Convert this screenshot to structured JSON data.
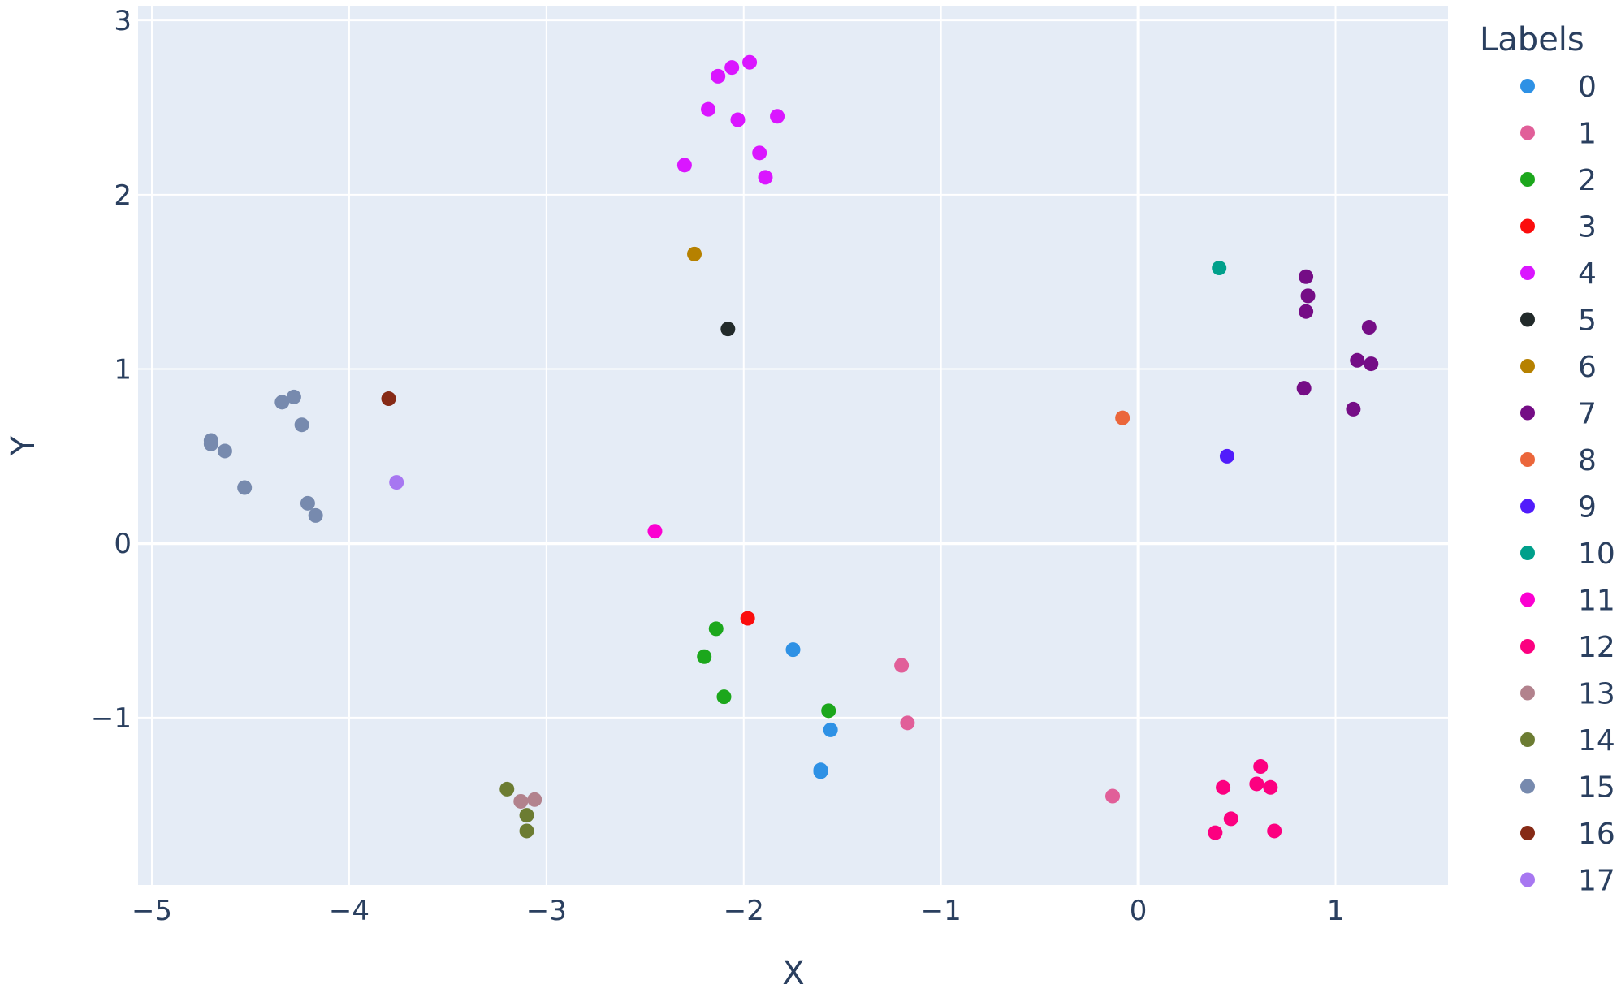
{
  "chart_data": {
    "type": "scatter",
    "xlabel": "X",
    "ylabel": "Y",
    "xlim": [
      -5.07,
      1.57
    ],
    "ylim": [
      -1.96,
      3.08
    ],
    "x_ticks": [
      -5,
      -4,
      -3,
      -2,
      -1,
      0,
      1
    ],
    "x_tick_labels": [
      "−5",
      "−4",
      "−3",
      "−2",
      "−1",
      "0",
      "1"
    ],
    "y_ticks": [
      -1,
      0,
      1,
      2,
      3
    ],
    "y_tick_labels": [
      "−1",
      "0",
      "1",
      "2",
      "3"
    ],
    "grid": true,
    "legend_title": "Labels",
    "legend_position": "right",
    "plot_bgcolor": "#e5ecf6",
    "series": [
      {
        "name": "0",
        "color": "#2e91e5",
        "points": [
          [
            -1.75,
            -0.61
          ],
          [
            -1.56,
            -1.07
          ],
          [
            -1.61,
            -1.3
          ],
          [
            -1.61,
            -1.31
          ]
        ]
      },
      {
        "name": "1",
        "color": "#e15f99",
        "points": [
          [
            -1.2,
            -0.7
          ],
          [
            -1.17,
            -1.03
          ],
          [
            -0.13,
            -1.45
          ]
        ]
      },
      {
        "name": "2",
        "color": "#1ca71c",
        "points": [
          [
            -2.14,
            -0.49
          ],
          [
            -2.2,
            -0.65
          ],
          [
            -2.1,
            -0.88
          ],
          [
            -1.57,
            -0.96
          ]
        ]
      },
      {
        "name": "3",
        "color": "#fb0d0d",
        "points": [
          [
            -1.98,
            -0.43
          ]
        ]
      },
      {
        "name": "4",
        "color": "#da16ff",
        "points": [
          [
            -1.97,
            2.76
          ],
          [
            -2.06,
            2.73
          ],
          [
            -2.13,
            2.68
          ],
          [
            -2.18,
            2.49
          ],
          [
            -2.03,
            2.43
          ],
          [
            -1.83,
            2.45
          ],
          [
            -2.3,
            2.17
          ],
          [
            -1.92,
            2.24
          ],
          [
            -1.89,
            2.1
          ]
        ]
      },
      {
        "name": "5",
        "color": "#222a2a",
        "points": [
          [
            -2.08,
            1.23
          ]
        ]
      },
      {
        "name": "6",
        "color": "#b68100",
        "points": [
          [
            -2.25,
            1.66
          ]
        ]
      },
      {
        "name": "7",
        "color": "#750d86",
        "points": [
          [
            0.85,
            1.53
          ],
          [
            0.86,
            1.42
          ],
          [
            0.85,
            1.33
          ],
          [
            1.17,
            1.24
          ],
          [
            1.11,
            1.05
          ],
          [
            1.18,
            1.03
          ],
          [
            0.84,
            0.89
          ],
          [
            1.09,
            0.77
          ]
        ]
      },
      {
        "name": "8",
        "color": "#eb663b",
        "points": [
          [
            -0.08,
            0.72
          ]
        ]
      },
      {
        "name": "9",
        "color": "#511cfb",
        "points": [
          [
            0.45,
            0.5
          ]
        ]
      },
      {
        "name": "10",
        "color": "#00a08b",
        "points": [
          [
            0.41,
            1.58
          ]
        ]
      },
      {
        "name": "11",
        "color": "#fb00d1",
        "points": [
          [
            -2.45,
            0.07
          ]
        ]
      },
      {
        "name": "12",
        "color": "#fc0080",
        "points": [
          [
            0.62,
            -1.28
          ],
          [
            0.43,
            -1.4
          ],
          [
            0.6,
            -1.38
          ],
          [
            0.67,
            -1.4
          ],
          [
            0.47,
            -1.58
          ],
          [
            0.39,
            -1.66
          ],
          [
            0.69,
            -1.65
          ]
        ]
      },
      {
        "name": "13",
        "color": "#b2828d",
        "points": [
          [
            -3.13,
            -1.48
          ],
          [
            -3.06,
            -1.47
          ]
        ]
      },
      {
        "name": "14",
        "color": "#6c7c32",
        "points": [
          [
            -3.2,
            -1.41
          ],
          [
            -3.1,
            -1.56
          ],
          [
            -3.1,
            -1.65
          ]
        ]
      },
      {
        "name": "15",
        "color": "#778aae",
        "points": [
          [
            -4.7,
            0.59
          ],
          [
            -4.7,
            0.57
          ],
          [
            -4.63,
            0.53
          ],
          [
            -4.34,
            0.81
          ],
          [
            -4.28,
            0.84
          ],
          [
            -4.24,
            0.68
          ],
          [
            -4.53,
            0.32
          ],
          [
            -4.21,
            0.23
          ],
          [
            -4.17,
            0.16
          ]
        ]
      },
      {
        "name": "16",
        "color": "#862a16",
        "points": [
          [
            -3.8,
            0.83
          ]
        ]
      },
      {
        "name": "17",
        "color": "#a777f1",
        "points": [
          [
            -3.76,
            0.35
          ]
        ]
      }
    ]
  }
}
